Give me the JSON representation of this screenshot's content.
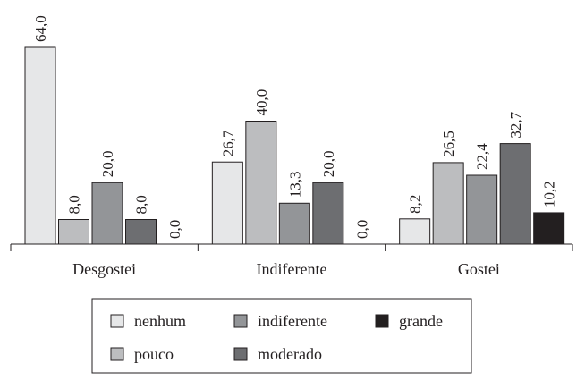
{
  "chart_data": {
    "type": "bar",
    "categories": [
      "Desgostei",
      "Indiferente",
      "Gostei"
    ],
    "series": [
      {
        "name": "nenhum",
        "color": "#e6e7e8",
        "values": [
          64.0,
          26.7,
          8.2
        ],
        "value_labels": [
          "64,0",
          "26,7",
          "8,2"
        ]
      },
      {
        "name": "pouco",
        "color": "#bcbdbf",
        "values": [
          8.0,
          40.0,
          26.5
        ],
        "value_labels": [
          "8,0",
          "40,0",
          "26,5"
        ]
      },
      {
        "name": "indiferente",
        "color": "#939598",
        "values": [
          20.0,
          13.3,
          22.4
        ],
        "value_labels": [
          "20,0",
          "13,3",
          "22,4"
        ]
      },
      {
        "name": "moderado",
        "color": "#6d6e71",
        "values": [
          8.0,
          20.0,
          32.7
        ],
        "value_labels": [
          "8,0",
          "20,0",
          "32,7"
        ]
      },
      {
        "name": "grande",
        "color": "#231f20",
        "values": [
          0.0,
          0.0,
          10.2
        ],
        "value_labels": [
          "0,0",
          "0,0",
          "10,2"
        ]
      }
    ],
    "legend": "bottom"
  }
}
